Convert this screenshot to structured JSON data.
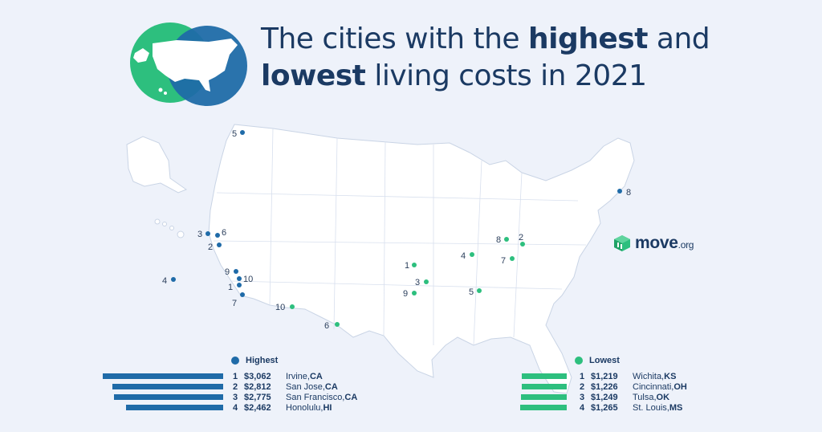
{
  "title": {
    "line1_pre": "The cities with the ",
    "line1_bold": "highest",
    "line1_post": " and",
    "line2_bold": "lowest",
    "line2_post": " living costs in 2021"
  },
  "logo": {
    "name": "move",
    "suffix": ".org"
  },
  "colors": {
    "highest": "#1f6ba8",
    "lowest": "#2dbf7e",
    "map_fill": "#ffffff",
    "map_stroke": "#c9d4e5",
    "title": "#1b3a63"
  },
  "map_markers": {
    "highest": [
      {
        "rank": "1",
        "city": "Irvine",
        "state": "CA"
      },
      {
        "rank": "2",
        "city": "San Jose",
        "state": "CA"
      },
      {
        "rank": "3",
        "city": "San Francisco",
        "state": "CA"
      },
      {
        "rank": "4",
        "city": "Honolulu",
        "state": "HI"
      },
      {
        "rank": "5",
        "city": "",
        "state": ""
      },
      {
        "rank": "6",
        "city": "",
        "state": ""
      },
      {
        "rank": "7",
        "city": "",
        "state": ""
      },
      {
        "rank": "8",
        "city": "",
        "state": ""
      },
      {
        "rank": "9",
        "city": "",
        "state": ""
      },
      {
        "rank": "10",
        "city": "",
        "state": ""
      }
    ],
    "lowest": [
      {
        "rank": "1",
        "city": "Wichita",
        "state": "KS"
      },
      {
        "rank": "2",
        "city": "Cincinnati",
        "state": "OH"
      },
      {
        "rank": "3",
        "city": "Tulsa",
        "state": "OK"
      },
      {
        "rank": "4",
        "city": "St. Louis",
        "state": "MS"
      },
      {
        "rank": "5",
        "city": "",
        "state": ""
      },
      {
        "rank": "6",
        "city": "",
        "state": ""
      },
      {
        "rank": "7",
        "city": "",
        "state": ""
      },
      {
        "rank": "8",
        "city": "",
        "state": ""
      },
      {
        "rank": "9",
        "city": "",
        "state": ""
      },
      {
        "rank": "10",
        "city": "",
        "state": ""
      }
    ]
  },
  "legend": {
    "highest_label": "Highest",
    "lowest_label": "Lowest",
    "highest": [
      {
        "rank": "1",
        "cost": "$3,062",
        "value": 3062,
        "city": "Irvine, ",
        "state": "CA"
      },
      {
        "rank": "2",
        "cost": "$2,812",
        "value": 2812,
        "city": "San Jose, ",
        "state": "CA"
      },
      {
        "rank": "3",
        "cost": "$2,775",
        "value": 2775,
        "city": "San Francisco, ",
        "state": "CA"
      },
      {
        "rank": "4",
        "cost": "$2,462",
        "value": 2462,
        "city": "Honolulu, ",
        "state": "HI"
      }
    ],
    "lowest": [
      {
        "rank": "1",
        "cost": "$1,219",
        "value": 1219,
        "city": "Wichita, ",
        "state": "KS"
      },
      {
        "rank": "2",
        "cost": "$1,226",
        "value": 1226,
        "city": "Cincinnati, ",
        "state": "OH"
      },
      {
        "rank": "3",
        "cost": "$1,249",
        "value": 1249,
        "city": "Tulsa, ",
        "state": "OK"
      },
      {
        "rank": "4",
        "cost": "$1,265",
        "value": 1265,
        "city": "St. Louis, ",
        "state": "MS"
      }
    ]
  }
}
